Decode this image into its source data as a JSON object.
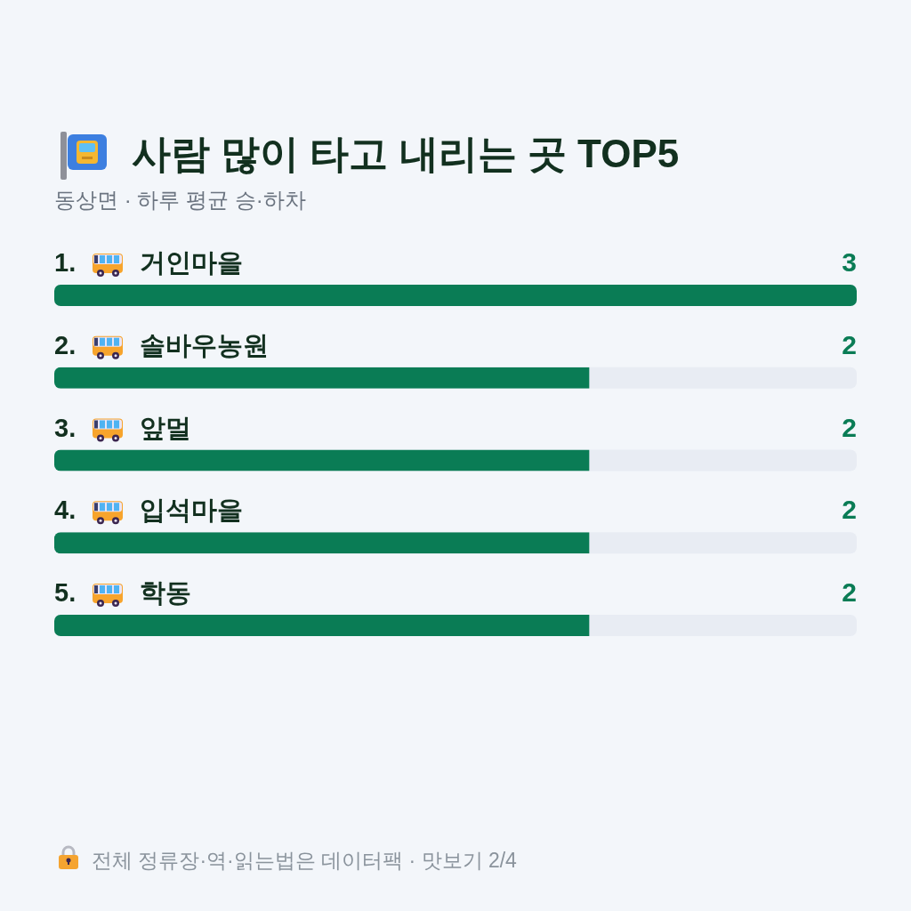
{
  "chart_data": {
    "type": "bar",
    "orientation": "horizontal",
    "title": "사람 많이 타고 내리는 곳 TOP5",
    "subtitle": "동상면 · 하루 평균 승·하차",
    "categories": [
      "1. 거인마을",
      "2. 솔바우농원",
      "3. 앞멀",
      "4. 입석마을",
      "5. 학동"
    ],
    "values": [
      3,
      2,
      2,
      2,
      2
    ],
    "color": "#0a7c55",
    "data_labels": true,
    "annotations": [
      "전체 정류장·역·읽는법은 데이터팩 · 맛보기 2/4"
    ]
  }
}
